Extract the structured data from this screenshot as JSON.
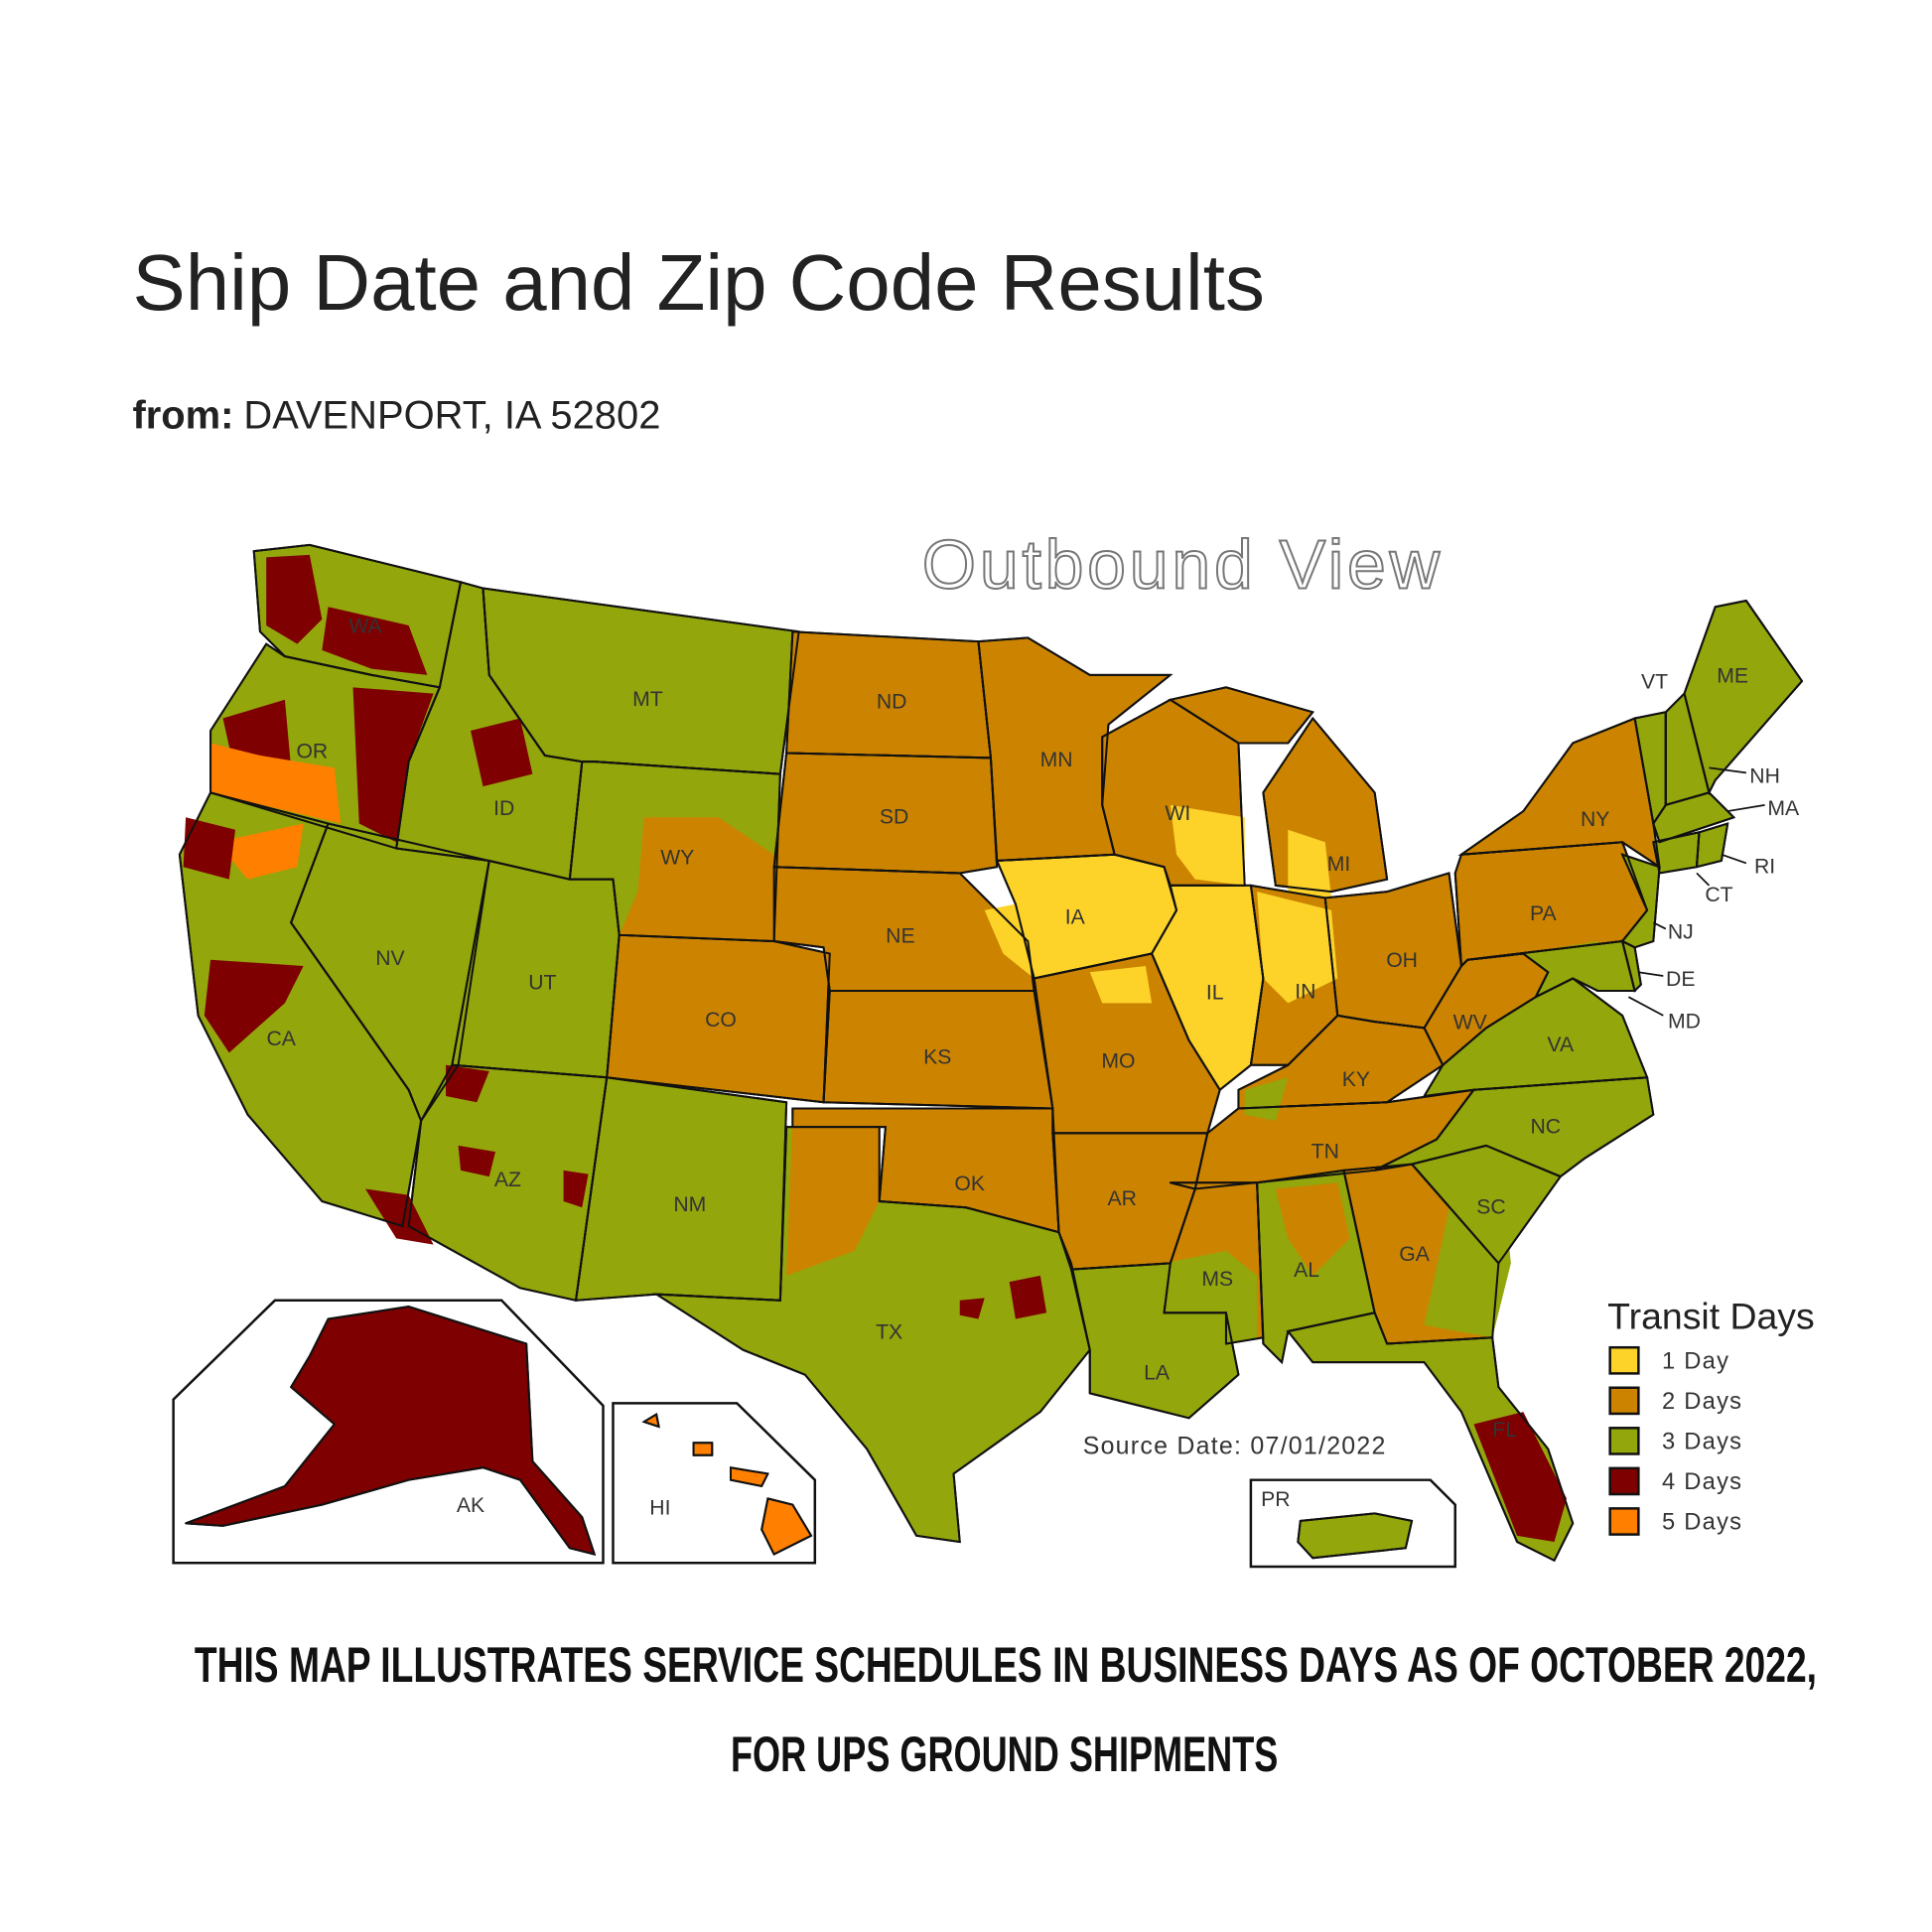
{
  "header": {
    "title": "Ship Date and Zip Code Results",
    "from_label": "from:",
    "from_value": "DAVENPORT, IA 52802"
  },
  "map": {
    "view_title": "Outbound View",
    "source_date": "Source Date: 07/01/2022",
    "legend": {
      "title": "Transit Days",
      "items": [
        {
          "label": "1 Day",
          "days": 1,
          "color": "#fdd32a"
        },
        {
          "label": "2 Days",
          "days": 2,
          "color": "#cc8400"
        },
        {
          "label": "3 Days",
          "days": 3,
          "color": "#93a60c"
        },
        {
          "label": "4 Days",
          "days": 4,
          "color": "#7e0000"
        },
        {
          "label": "5 Days",
          "days": 5,
          "color": "#ff7f00"
        }
      ]
    },
    "states": {
      "WA": {
        "label": "WA",
        "days": 3
      },
      "OR": {
        "label": "OR",
        "days": 3
      },
      "CA": {
        "label": "CA",
        "days": 3
      },
      "NV": {
        "label": "NV",
        "days": 3
      },
      "ID": {
        "label": "ID",
        "days": 3
      },
      "MT": {
        "label": "MT",
        "days": 3
      },
      "WY": {
        "label": "WY",
        "days": 3
      },
      "UT": {
        "label": "UT",
        "days": 3
      },
      "CO": {
        "label": "CO",
        "days": 2
      },
      "AZ": {
        "label": "AZ",
        "days": 3
      },
      "NM": {
        "label": "NM",
        "days": 3
      },
      "ND": {
        "label": "ND",
        "days": 2
      },
      "SD": {
        "label": "SD",
        "days": 2
      },
      "NE": {
        "label": "NE",
        "days": 2
      },
      "KS": {
        "label": "KS",
        "days": 2
      },
      "OK": {
        "label": "OK",
        "days": 2
      },
      "TX": {
        "label": "TX",
        "days": 3
      },
      "MN": {
        "label": "MN",
        "days": 2
      },
      "IA": {
        "label": "IA",
        "days": 1
      },
      "MO": {
        "label": "MO",
        "days": 2
      },
      "AR": {
        "label": "AR",
        "days": 2
      },
      "LA": {
        "label": "LA",
        "days": 3
      },
      "WI": {
        "label": "WI",
        "days": 2
      },
      "IL": {
        "label": "IL",
        "days": 1
      },
      "IN": {
        "label": "IN",
        "days": 2
      },
      "MI": {
        "label": "MI",
        "days": 2
      },
      "OH": {
        "label": "OH",
        "days": 2
      },
      "KY": {
        "label": "KY",
        "days": 2
      },
      "TN": {
        "label": "TN",
        "days": 2
      },
      "MS": {
        "label": "MS",
        "days": 2
      },
      "AL": {
        "label": "AL",
        "days": 3
      },
      "GA": {
        "label": "GA",
        "days": 2
      },
      "FL": {
        "label": "FL",
        "days": 3
      },
      "SC": {
        "label": "SC",
        "days": 3
      },
      "NC": {
        "label": "NC",
        "days": 3
      },
      "VA": {
        "label": "VA",
        "days": 3
      },
      "WV": {
        "label": "WV",
        "days": 2
      },
      "PA": {
        "label": "PA",
        "days": 2
      },
      "NY": {
        "label": "NY",
        "days": 2
      },
      "VT": {
        "label": "VT",
        "days": 3
      },
      "NH": {
        "label": "NH",
        "days": 3
      },
      "ME": {
        "label": "ME",
        "days": 3
      },
      "MA": {
        "label": "MA",
        "days": 3
      },
      "RI": {
        "label": "RI",
        "days": 3
      },
      "CT": {
        "label": "CT",
        "days": 3
      },
      "NJ": {
        "label": "NJ",
        "days": 3
      },
      "DE": {
        "label": "DE",
        "days": 3
      },
      "MD": {
        "label": "MD",
        "days": 3
      },
      "AK": {
        "label": "AK",
        "days": 4
      },
      "HI": {
        "label": "HI",
        "days": 5
      },
      "PR": {
        "label": "PR",
        "days": 3
      }
    }
  },
  "caption": {
    "line1": "THIS MAP ILLUSTRATES SERVICE SCHEDULES IN BUSINESS DAYS AS OF OCTOBER 2022,",
    "line2": "FOR UPS GROUND SHIPMENTS"
  }
}
